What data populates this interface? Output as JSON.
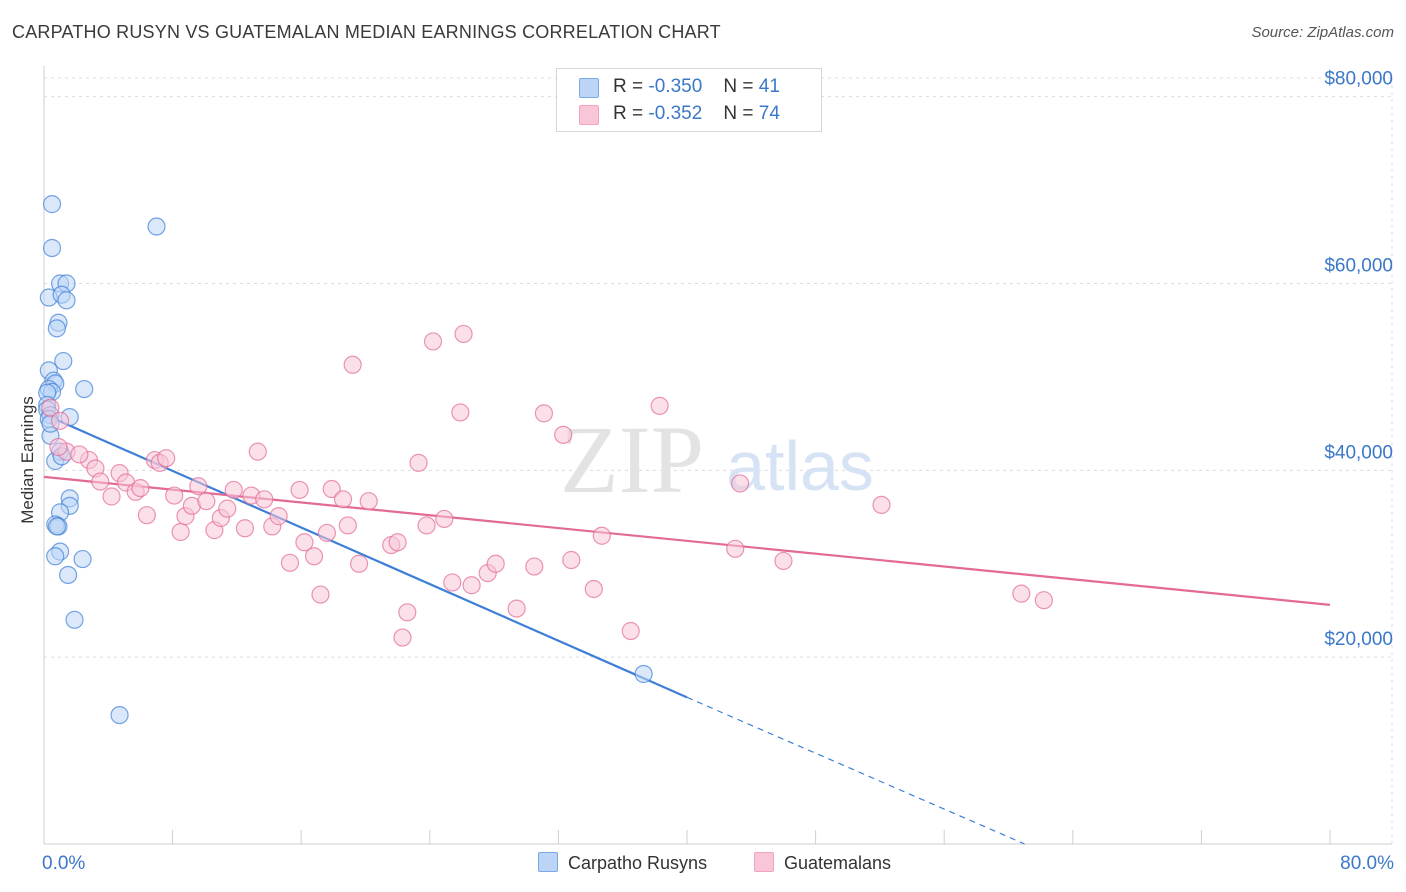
{
  "title": "CARPATHO RUSYN VS GUATEMALAN MEDIAN EARNINGS CORRELATION CHART",
  "source": "Source: ZipAtlas.com",
  "watermark": {
    "zip": "ZIP",
    "atlas": "atlas"
  },
  "legend": {
    "rows": [
      {
        "r_label": "R =",
        "r_value": "-0.350",
        "n_label": "N =",
        "n_value": "41",
        "color": "#7aa9e8"
      },
      {
        "r_label": "R =",
        "r_value": "-0.352",
        "n_label": "N =",
        "n_value": "74",
        "color": "#f4a3bf"
      }
    ]
  },
  "bottom_legend": [
    {
      "label": "Carpatho Rusyns",
      "color": "#7aa9e8"
    },
    {
      "label": "Guatemalans",
      "color": "#f4a3bf"
    }
  ],
  "chart_data": {
    "type": "scatter",
    "title": "CARPATHO RUSYN VS GUATEMALAN MEDIAN EARNINGS CORRELATION CHART",
    "xlabel": "",
    "ylabel": "Median Earnings",
    "xlim": [
      0,
      80
    ],
    "ylim": [
      0,
      82000
    ],
    "x_tick_labels": [
      "0.0%",
      "80.0%"
    ],
    "y_ticks": [
      20000,
      40000,
      60000,
      80000
    ],
    "y_tick_labels": [
      "$20,000",
      "$40,000",
      "$60,000",
      "$80,000"
    ],
    "grid": true,
    "series": [
      {
        "name": "Carpatho Rusyns",
        "color": "#3d7fd6",
        "fill": "#bcd5f6",
        "points": [
          [
            0.5,
            68500
          ],
          [
            0.5,
            63800
          ],
          [
            1.0,
            60000
          ],
          [
            1.4,
            60000
          ],
          [
            0.3,
            58500
          ],
          [
            1.1,
            58800
          ],
          [
            1.4,
            58200
          ],
          [
            0.9,
            55800
          ],
          [
            0.8,
            55200
          ],
          [
            1.2,
            51700
          ],
          [
            0.3,
            50700
          ],
          [
            0.6,
            49600
          ],
          [
            0.7,
            49300
          ],
          [
            0.3,
            48700
          ],
          [
            0.5,
            48400
          ],
          [
            2.5,
            48700
          ],
          [
            0.2,
            48300
          ],
          [
            0.2,
            47000
          ],
          [
            0.2,
            46500
          ],
          [
            0.4,
            45900
          ],
          [
            1.6,
            45700
          ],
          [
            0.3,
            45500
          ],
          [
            0.4,
            43700
          ],
          [
            1.0,
            42000
          ],
          [
            0.7,
            41000
          ],
          [
            1.6,
            37000
          ],
          [
            1.6,
            36200
          ],
          [
            1.0,
            35500
          ],
          [
            0.7,
            34200
          ],
          [
            0.9,
            34000
          ],
          [
            0.8,
            34000
          ],
          [
            1.0,
            31300
          ],
          [
            0.7,
            30800
          ],
          [
            2.4,
            30500
          ],
          [
            1.5,
            28800
          ],
          [
            1.9,
            24000
          ],
          [
            4.7,
            13800
          ],
          [
            7.0,
            66100
          ],
          [
            37.3,
            18200
          ],
          [
            1.1,
            41500
          ],
          [
            0.4,
            45000
          ]
        ],
        "trend": {
          "x0": 0,
          "y0": 46000,
          "x1": 40,
          "y1": 15700,
          "dash_to_x": 61,
          "dash_to_y": 0
        }
      },
      {
        "name": "Guatemalans",
        "color": "#e26a95",
        "fill": "#f8c6d8",
        "points": [
          [
            0.4,
            46700
          ],
          [
            1.0,
            45300
          ],
          [
            1.4,
            42000
          ],
          [
            2.8,
            41100
          ],
          [
            3.2,
            40200
          ],
          [
            3.5,
            38800
          ],
          [
            4.2,
            37200
          ],
          [
            4.7,
            39700
          ],
          [
            5.1,
            38700
          ],
          [
            5.7,
            37700
          ],
          [
            6.0,
            38100
          ],
          [
            6.4,
            35200
          ],
          [
            6.9,
            41100
          ],
          [
            7.2,
            40800
          ],
          [
            7.6,
            41300
          ],
          [
            8.1,
            37300
          ],
          [
            8.5,
            33400
          ],
          [
            8.8,
            35100
          ],
          [
            9.2,
            36200
          ],
          [
            9.6,
            38300
          ],
          [
            10.1,
            36700
          ],
          [
            10.6,
            33600
          ],
          [
            11.0,
            34900
          ],
          [
            11.4,
            35900
          ],
          [
            11.8,
            37900
          ],
          [
            12.5,
            33800
          ],
          [
            12.9,
            37300
          ],
          [
            13.3,
            42000
          ],
          [
            13.7,
            36900
          ],
          [
            14.2,
            34000
          ],
          [
            14.6,
            35100
          ],
          [
            15.3,
            30100
          ],
          [
            15.9,
            37900
          ],
          [
            16.2,
            32300
          ],
          [
            16.8,
            30800
          ],
          [
            17.2,
            26700
          ],
          [
            17.6,
            33300
          ],
          [
            17.9,
            38000
          ],
          [
            18.6,
            36900
          ],
          [
            18.9,
            34100
          ],
          [
            19.2,
            51300
          ],
          [
            19.6,
            30000
          ],
          [
            20.2,
            36700
          ],
          [
            21.6,
            32000
          ],
          [
            22.0,
            32300
          ],
          [
            22.3,
            22100
          ],
          [
            22.6,
            24800
          ],
          [
            23.3,
            40800
          ],
          [
            23.8,
            34100
          ],
          [
            24.2,
            53800
          ],
          [
            24.9,
            34800
          ],
          [
            25.4,
            28000
          ],
          [
            25.9,
            46200
          ],
          [
            26.1,
            54600
          ],
          [
            26.6,
            27700
          ],
          [
            27.6,
            29000
          ],
          [
            28.1,
            30000
          ],
          [
            29.4,
            25200
          ],
          [
            30.5,
            29700
          ],
          [
            31.1,
            46100
          ],
          [
            32.3,
            43800
          ],
          [
            32.8,
            30400
          ],
          [
            34.2,
            27300
          ],
          [
            34.7,
            33000
          ],
          [
            36.5,
            22800
          ],
          [
            38.3,
            46900
          ],
          [
            43.0,
            31600
          ],
          [
            43.3,
            38600
          ],
          [
            46.0,
            30300
          ],
          [
            52.1,
            36300
          ],
          [
            60.8,
            26800
          ],
          [
            62.2,
            26100
          ],
          [
            0.9,
            42500
          ],
          [
            2.2,
            41700
          ]
        ],
        "trend": {
          "x0": 0,
          "y0": 39300,
          "x1": 80,
          "y1": 25600
        }
      }
    ]
  }
}
